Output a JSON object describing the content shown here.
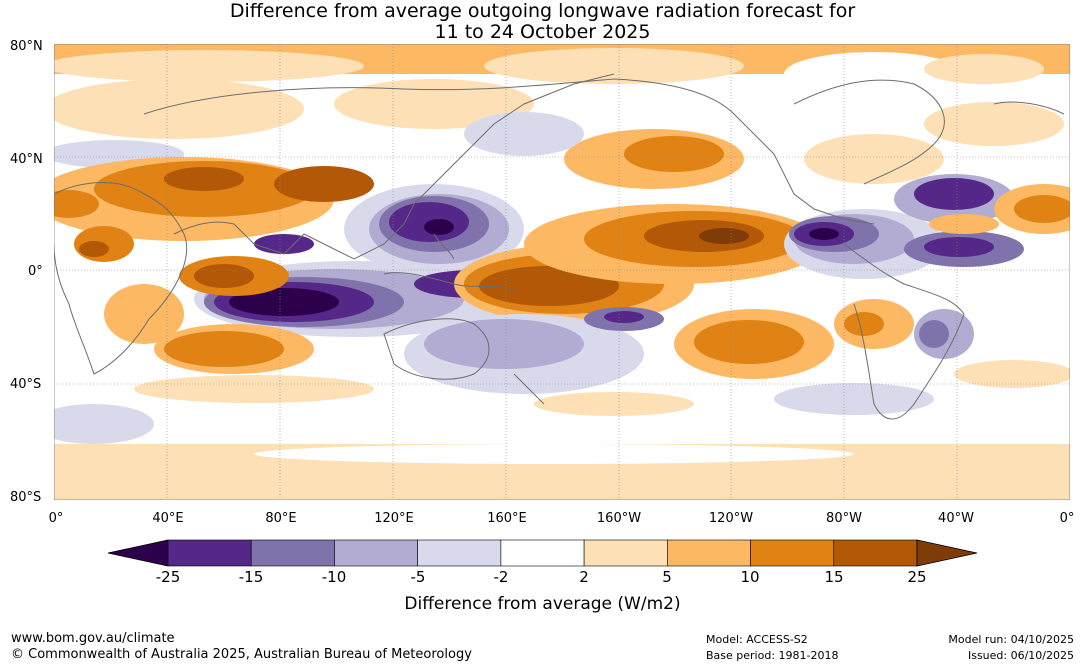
{
  "title_line1": "Difference from average outgoing longwave radiation forecast for",
  "title_line2": "11 to 24 October 2025",
  "map": {
    "lat_labels": [
      "80°N",
      "40°N",
      "0°",
      "40°S",
      "80°S"
    ],
    "lon_labels": [
      "0°",
      "40°E",
      "80°E",
      "120°E",
      "160°E",
      "160°W",
      "120°W",
      "80°W",
      "40°W",
      "0°"
    ]
  },
  "colorbar": {
    "title": "Difference from average (W/m2)",
    "tick_labels": [
      "-25",
      "-15",
      "-10",
      "-5",
      "-2",
      "2",
      "5",
      "10",
      "15",
      "25"
    ],
    "colors": [
      "#2d004b",
      "#542788",
      "#8073ac",
      "#b2abd2",
      "#d8daeb",
      "#ffffff",
      "#fee0b6",
      "#fdb863",
      "#e08214",
      "#b35806",
      "#7f3b08"
    ]
  },
  "footer": {
    "website": "www.bom.gov.au/climate",
    "copyright": "© Commonwealth of Australia 2025, Australian Bureau of Meteorology",
    "model": "Model: ACCESS-S2",
    "base_period": "Base period: 1981-2018",
    "model_run": "Model run: 04/10/2025",
    "issued": "Issued: 06/10/2025"
  }
}
